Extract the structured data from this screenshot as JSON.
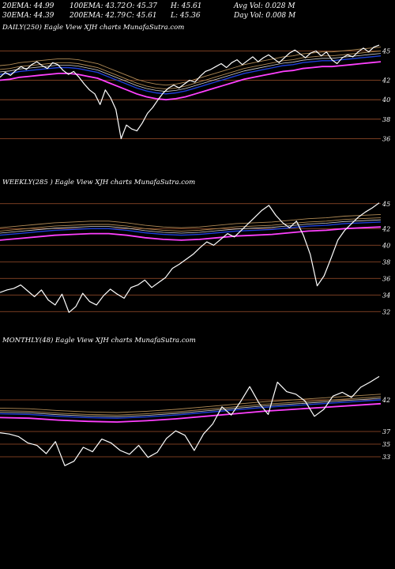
{
  "header": {
    "ema20": "20EMA: 44.99",
    "ema100": "100EMA: 43.72",
    "open": "O: 45.37",
    "high": "H: 45.61",
    "avg_vol": "Avg Vol: 0.028  M",
    "ema30": "30EMA: 44.39",
    "ema200": "200EMA: 42.79",
    "close": "C: 45.61",
    "low": "L: 45.36",
    "day_vol": "Day Vol: 0.008  M"
  },
  "panels": {
    "daily": {
      "label": "DAILY(250) Eagle  View  XJH charts MunafaSutra.com",
      "ticks": [
        "45",
        "42",
        "40",
        "38",
        "36"
      ]
    },
    "weekly": {
      "label": "WEEKLY(285                         ) Eagle  View  XJH charts MunafaSutra.com",
      "ticks": [
        "45",
        "42",
        "40",
        "38",
        "36",
        "34",
        "32"
      ]
    },
    "monthly": {
      "label": "MONTHLY(48) Eagle  View  XJH charts MunafaSutra.com",
      "ticks": [
        "42",
        "37",
        "35",
        "33"
      ]
    }
  },
  "colors": {
    "background": "#000000",
    "price": "#ffffff",
    "ema_fast": "#1e3fd8",
    "ema_mid": "#ff40ff",
    "ema_slow": "#b08a55",
    "grid": "#a0522d"
  },
  "chart_data": [
    {
      "type": "line",
      "title": "DAILY(250) Eagle  View  XJH charts MunafaSutra.com",
      "ylim": [
        34.5,
        46.5
      ],
      "y_ticks": [
        45,
        42,
        40,
        38,
        36
      ],
      "grid": true,
      "series": [
        {
          "values": [
            42.3,
            42.8,
            42.5,
            43.0,
            43.4,
            43.1,
            43.6,
            43.9,
            43.5,
            43.2,
            43.8,
            43.6,
            43.0,
            42.6,
            42.9,
            42.3,
            41.6,
            41.0,
            40.6,
            39.5,
            41.0,
            40.2,
            39.0,
            36.0,
            37.4,
            37.0,
            36.8,
            37.6,
            38.6,
            39.2,
            40.0,
            40.7,
            41.2,
            41.5,
            41.2,
            41.6,
            42.0,
            41.8,
            42.4,
            42.9,
            43.1,
            43.4,
            43.7,
            43.3,
            43.8,
            44.1,
            43.6,
            44.0,
            44.4,
            43.9,
            44.3,
            44.6,
            44.2,
            43.8,
            44.3,
            44.8,
            45.1,
            44.7,
            44.3,
            44.8,
            45.0,
            44.5,
            44.9,
            44.1,
            43.7,
            44.3,
            44.6,
            44.4,
            44.9,
            45.3,
            44.9,
            45.4,
            45.6
          ]
        },
        {
          "values": [
            42.6,
            42.7,
            42.9,
            43.0,
            43.1,
            43.2,
            43.3,
            43.3,
            43.2,
            43.0,
            42.8,
            42.4,
            42.0,
            41.6,
            41.2,
            40.9,
            40.7,
            40.6,
            40.7,
            40.9,
            41.2,
            41.5,
            41.8,
            42.1,
            42.4,
            42.7,
            42.9,
            43.1,
            43.3,
            43.5,
            43.6,
            43.8,
            43.9,
            44.0,
            44.0,
            44.1,
            44.2,
            44.3,
            44.4,
            44.5
          ]
        }
      ]
    },
    {
      "type": "line",
      "title": "WEEKLY(285                         ) Eagle  View  XJH charts MunafaSutra.com",
      "ylim": [
        30.5,
        46.5
      ],
      "y_ticks": [
        45,
        42,
        40,
        38,
        36,
        34,
        32
      ],
      "grid": true,
      "series": [
        {
          "values": [
            34.3,
            34.6,
            34.8,
            35.2,
            34.5,
            33.8,
            34.6,
            33.4,
            32.8,
            34.1,
            31.9,
            32.6,
            34.2,
            33.2,
            32.8,
            33.9,
            34.7,
            34.1,
            33.6,
            34.9,
            35.2,
            35.8,
            34.9,
            35.5,
            36.1,
            37.2,
            37.7,
            38.3,
            38.9,
            39.7,
            40.4,
            40.0,
            40.7,
            41.4,
            41.0,
            41.8,
            42.6,
            43.4,
            44.2,
            44.8,
            43.6,
            42.7,
            42.1,
            42.9,
            41.2,
            38.9,
            35.1,
            36.3,
            38.4,
            40.6,
            41.8,
            42.6,
            43.4,
            44.0,
            44.5,
            45.1
          ]
        },
        {
          "values": [
            41.2,
            41.4,
            41.6,
            41.8,
            41.9,
            42.0,
            42.0,
            41.8,
            41.5,
            41.3,
            41.2,
            41.3,
            41.5,
            41.7,
            41.8,
            41.9,
            42.1,
            42.3,
            42.4,
            42.6,
            42.7,
            42.8
          ]
        }
      ]
    },
    {
      "type": "line",
      "title": "MONTHLY(48) Eagle  View  XJH charts MunafaSutra.com",
      "ylim": [
        29,
        50
      ],
      "y_ticks": [
        42,
        37,
        35,
        33
      ],
      "grid": true,
      "series": [
        {
          "values": [
            36.8,
            36.6,
            36.2,
            35.2,
            34.8,
            33.5,
            35.4,
            31.6,
            32.3,
            34.5,
            33.8,
            35.8,
            35.2,
            34.0,
            33.4,
            34.8,
            32.9,
            33.7,
            35.9,
            37.1,
            36.4,
            34.0,
            36.6,
            38.2,
            40.9,
            39.6,
            41.7,
            44.1,
            41.5,
            39.7,
            44.8,
            43.3,
            42.9,
            41.8,
            39.4,
            40.5,
            42.6,
            43.2,
            42.4,
            44.0,
            44.8,
            45.7
          ]
        },
        {
          "values": [
            39.8,
            39.7,
            39.4,
            39.2,
            39.1,
            39.3,
            39.6,
            40.0,
            40.4,
            40.8,
            41.1,
            41.4,
            41.7,
            42.0
          ]
        }
      ]
    }
  ]
}
